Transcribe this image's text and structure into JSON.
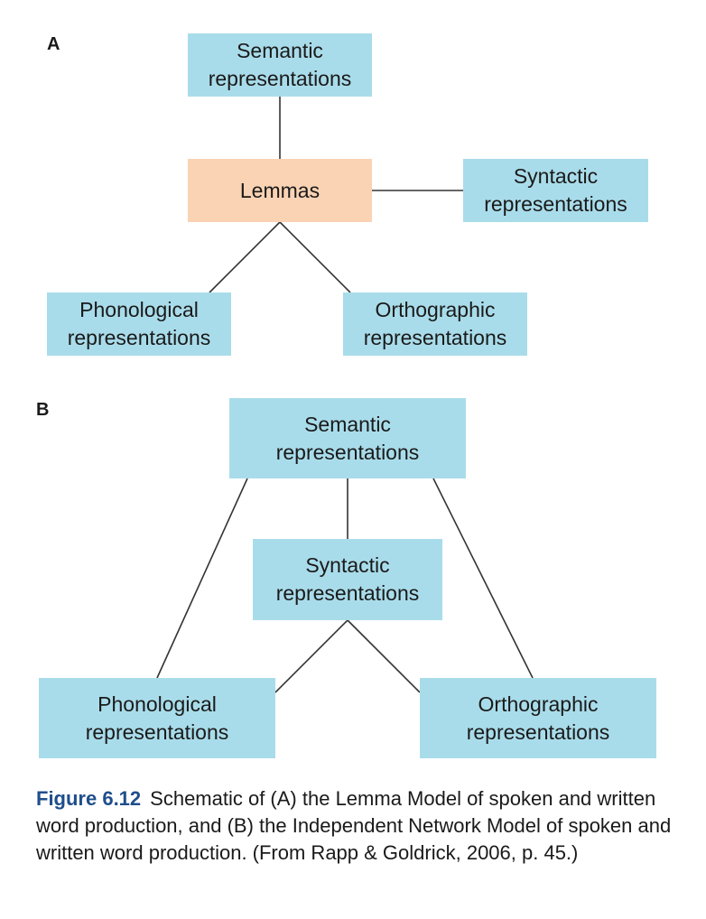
{
  "panel_a": {
    "label": "A",
    "semantic": [
      "Semantic",
      "representations"
    ],
    "lemmas": [
      "Lemmas"
    ],
    "syntactic": [
      "Syntactic",
      "representations"
    ],
    "phonological": [
      "Phonological",
      "representations"
    ],
    "orthographic": [
      "Orthographic",
      "representations"
    ]
  },
  "panel_b": {
    "label": "B",
    "semantic": [
      "Semantic",
      "representations"
    ],
    "syntactic": [
      "Syntactic",
      "representations"
    ],
    "phonological": [
      "Phonological",
      "representations"
    ],
    "orthographic": [
      "Orthographic",
      "representations"
    ]
  },
  "colors": {
    "box_blue": "#a9dcea",
    "box_peach": "#fad3b4",
    "figure_label": "#1f4e8c"
  },
  "caption": {
    "figure": "Figure 6.12",
    "text": "Schematic of (A) the Lemma Model of spoken and written word production, and (B) the Independent Network Model of spoken and written word production. (From Rapp & Goldrick, 2006, p. 45.)"
  }
}
